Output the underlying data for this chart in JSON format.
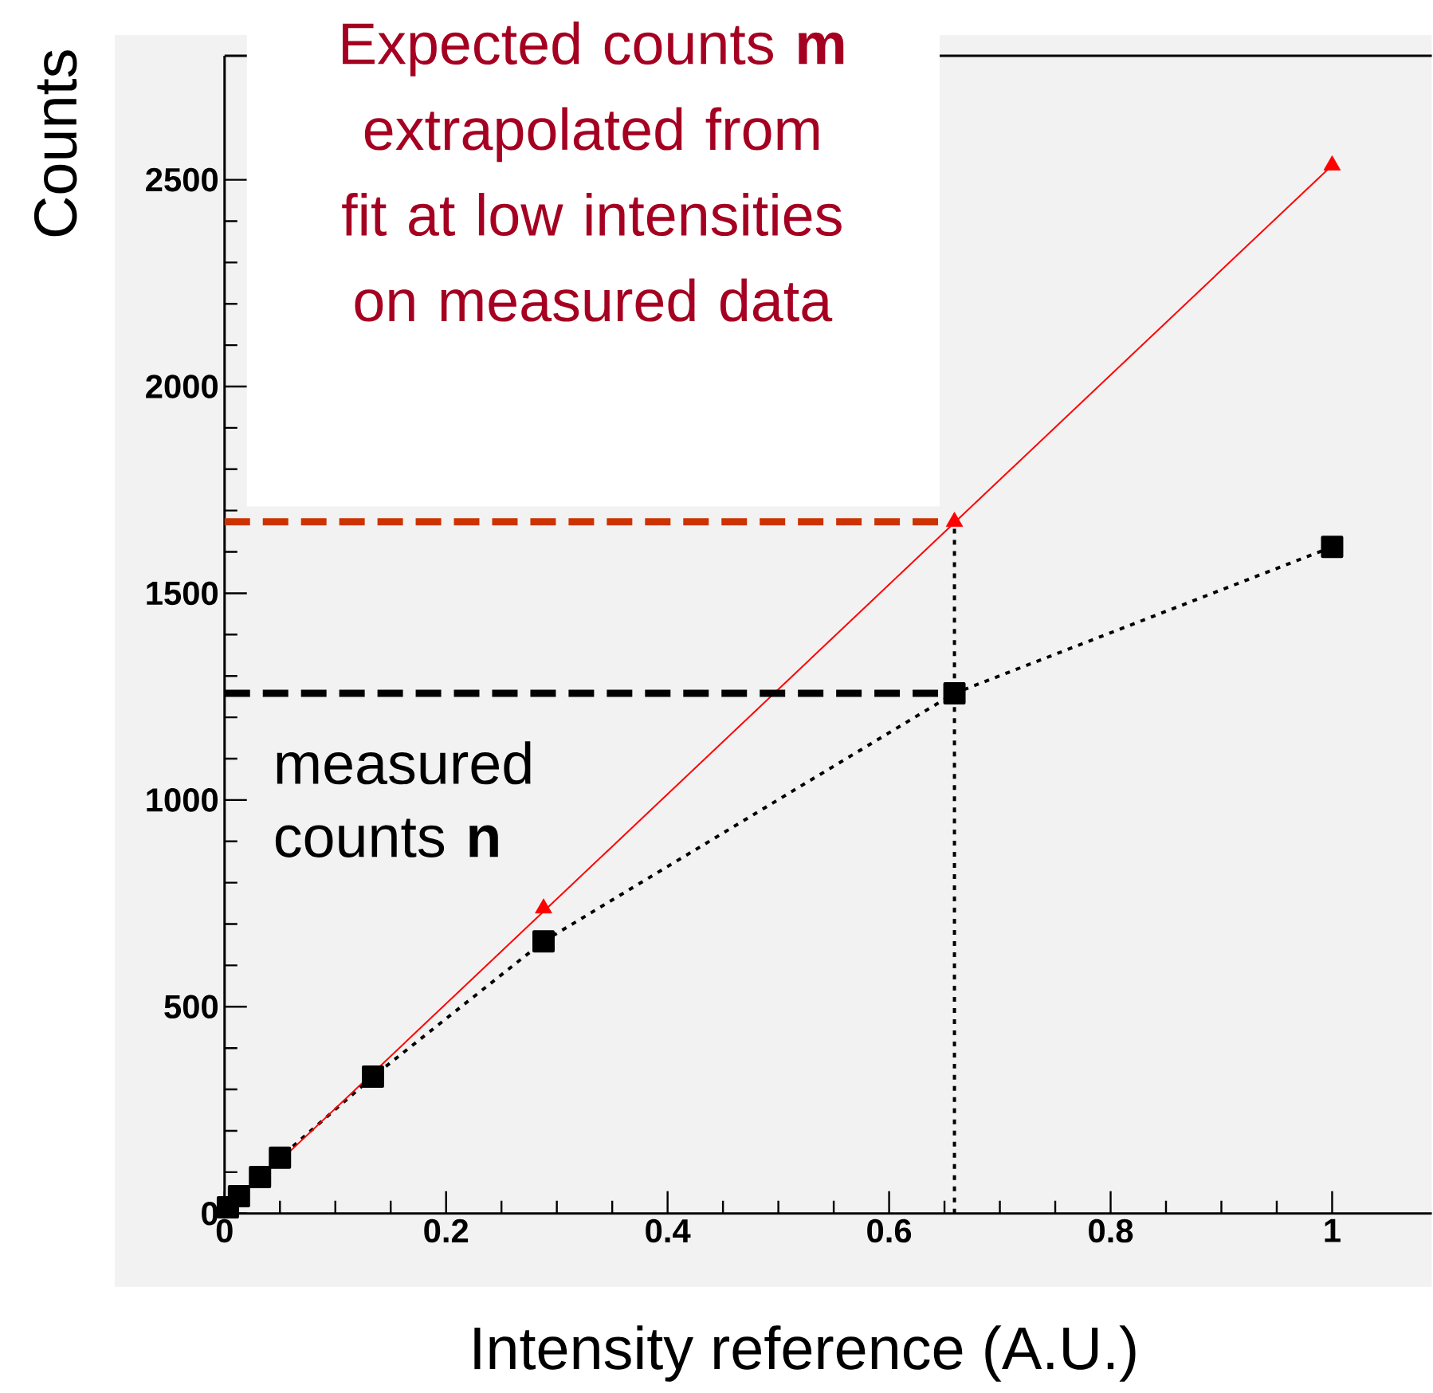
{
  "chart_data": {
    "type": "line",
    "xlabel": "Intensity reference (A.U.)",
    "ylabel": "Counts",
    "xlim": [
      0,
      1.09
    ],
    "ylim": [
      0,
      2800
    ],
    "xticks": [
      0,
      0.2,
      0.4,
      0.6,
      0.8,
      1
    ],
    "yticks": [
      0,
      500,
      1000,
      1500,
      2000,
      2500
    ],
    "series": [
      {
        "color": "#000000",
        "x": [
          0.003,
          0.013,
          0.032,
          0.05,
          0.134,
          0.288,
          0.659,
          1.0
        ],
        "values": [
          15,
          42,
          88,
          135,
          331,
          658,
          1258,
          1612
        ],
        "marker": "square",
        "line_style": "dotted"
      },
      {
        "color": "#ff0000",
        "x": [
          0.059,
          1.0
        ],
        "values": [
          150,
          2535
        ],
        "marker": "none",
        "line_style": "solid"
      },
      {
        "type": "scatter",
        "color": "#ff0000",
        "x": [
          0.288,
          0.659,
          1.0
        ],
        "values": [
          738,
          1673,
          2535
        ],
        "marker": "triangle"
      },
      {
        "color": "#cc3300",
        "x": [
          0,
          0.659
        ],
        "values": [
          1673,
          1673
        ],
        "marker": "none",
        "line_style": "dashed"
      },
      {
        "color": "#000000",
        "x": [
          0,
          0.659
        ],
        "values": [
          1258,
          1258
        ],
        "marker": "none",
        "line_style": "dashed"
      },
      {
        "color": "#000000",
        "x": [
          0.659,
          0.659
        ],
        "values": [
          0,
          1673
        ],
        "marker": "none",
        "line_style": "dotted"
      }
    ],
    "annotations": [
      "Expected counts **m** extrapolated from fit at low intensities on measured data",
      "measured counts **n**"
    ]
  }
}
